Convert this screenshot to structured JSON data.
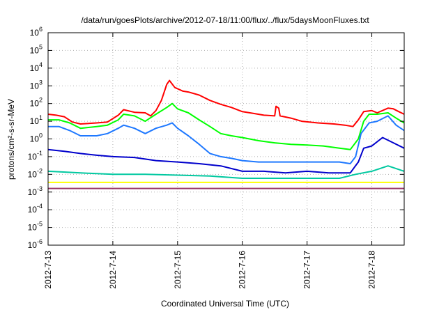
{
  "chart_data": {
    "type": "line",
    "title": "/data/run/goesPlots/archive/2012-07-18/11:00/flux/../flux/5daysMoonFluxes.txt",
    "xlabel": "Coordinated Universal Time (UTC)",
    "ylabel": "protons/cm²-s-sr-MeV",
    "yscale": "log",
    "xlim": [
      "2012-07-13T00:00",
      "2012-07-18T12:00"
    ],
    "ylim": [
      1e-06,
      1000000.0
    ],
    "grid": true,
    "xticks": [
      {
        "t": "2012-07-13T00:00",
        "label": "2012-7-13"
      },
      {
        "t": "2012-07-14T00:00",
        "label": "2012-7-14"
      },
      {
        "t": "2012-07-15T00:00",
        "label": "2012-7-15"
      },
      {
        "t": "2012-07-16T00:00",
        "label": "2012-7-16"
      },
      {
        "t": "2012-07-17T00:00",
        "label": "2012-7-17"
      },
      {
        "t": "2012-07-18T00:00",
        "label": "2012-7-18"
      }
    ],
    "yticks": [
      {
        "v": 1e-06,
        "base": "10",
        "exp": "-6"
      },
      {
        "v": 1e-05,
        "base": "10",
        "exp": "-5"
      },
      {
        "v": 0.0001,
        "base": "10",
        "exp": "-4"
      },
      {
        "v": 0.001,
        "base": "10",
        "exp": "-3"
      },
      {
        "v": 0.01,
        "base": "10",
        "exp": "-2"
      },
      {
        "v": 0.1,
        "base": "10",
        "exp": "-1"
      },
      {
        "v": 1.0,
        "base": "10",
        "exp": "0"
      },
      {
        "v": 10.0,
        "base": "10",
        "exp": "1"
      },
      {
        "v": 100.0,
        "base": "10",
        "exp": "2"
      },
      {
        "v": 1000.0,
        "base": "10",
        "exp": "3"
      },
      {
        "v": 10000.0,
        "base": "10",
        "exp": "4"
      },
      {
        "v": 100000.0,
        "base": "10",
        "exp": "5"
      },
      {
        "v": 1000000.0,
        "base": "10",
        "exp": "6"
      }
    ],
    "series": [
      {
        "color": "#ff0000",
        "points": [
          [
            "2012-07-13T00:00",
            25
          ],
          [
            "2012-07-13T03:00",
            22
          ],
          [
            "2012-07-13T06:00",
            18
          ],
          [
            "2012-07-13T09:00",
            9
          ],
          [
            "2012-07-13T12:00",
            7
          ],
          [
            "2012-07-13T18:00",
            8
          ],
          [
            "2012-07-13T22:00",
            9
          ],
          [
            "2012-07-14T02:00",
            22
          ],
          [
            "2012-07-14T04:00",
            45
          ],
          [
            "2012-07-14T08:00",
            32
          ],
          [
            "2012-07-14T12:00",
            30
          ],
          [
            "2012-07-14T14:00",
            20
          ],
          [
            "2012-07-14T16:00",
            40
          ],
          [
            "2012-07-14T18:00",
            150
          ],
          [
            "2012-07-14T20:00",
            1200
          ],
          [
            "2012-07-14T21:00",
            2000
          ],
          [
            "2012-07-14T23:00",
            800
          ],
          [
            "2012-07-15T02:00",
            500
          ],
          [
            "2012-07-15T04:00",
            450
          ],
          [
            "2012-07-15T08:00",
            300
          ],
          [
            "2012-07-15T12:00",
            150
          ],
          [
            "2012-07-15T16:00",
            90
          ],
          [
            "2012-07-15T20:00",
            60
          ],
          [
            "2012-07-16T00:00",
            35
          ],
          [
            "2012-07-16T04:00",
            28
          ],
          [
            "2012-07-16T08:00",
            22
          ],
          [
            "2012-07-16T12:00",
            20
          ],
          [
            "2012-07-16T12:30",
            70
          ],
          [
            "2012-07-16T13:30",
            55
          ],
          [
            "2012-07-16T14:00",
            20
          ],
          [
            "2012-07-16T18:00",
            15
          ],
          [
            "2012-07-16T22:00",
            10
          ],
          [
            "2012-07-17T04:00",
            8
          ],
          [
            "2012-07-17T10:00",
            7
          ],
          [
            "2012-07-17T14:00",
            6
          ],
          [
            "2012-07-17T17:00",
            5
          ],
          [
            "2012-07-17T19:00",
            12
          ],
          [
            "2012-07-17T21:00",
            35
          ],
          [
            "2012-07-18T00:00",
            40
          ],
          [
            "2012-07-18T02:00",
            30
          ],
          [
            "2012-07-18T06:00",
            55
          ],
          [
            "2012-07-18T08:00",
            50
          ],
          [
            "2012-07-18T10:00",
            35
          ],
          [
            "2012-07-18T12:00",
            25
          ]
        ]
      },
      {
        "color": "#00ff00",
        "points": [
          [
            "2012-07-13T00:00",
            12
          ],
          [
            "2012-07-13T04:00",
            12
          ],
          [
            "2012-07-13T08:00",
            8
          ],
          [
            "2012-07-13T12:00",
            4
          ],
          [
            "2012-07-13T18:00",
            5
          ],
          [
            "2012-07-13T22:00",
            6
          ],
          [
            "2012-07-14T02:00",
            12
          ],
          [
            "2012-07-14T04:00",
            25
          ],
          [
            "2012-07-14T08:00",
            20
          ],
          [
            "2012-07-14T12:00",
            10
          ],
          [
            "2012-07-14T16:00",
            25
          ],
          [
            "2012-07-14T20:00",
            60
          ],
          [
            "2012-07-14T22:00",
            100
          ],
          [
            "2012-07-15T00:00",
            50
          ],
          [
            "2012-07-15T04:00",
            30
          ],
          [
            "2012-07-15T08:00",
            12
          ],
          [
            "2012-07-15T12:00",
            5
          ],
          [
            "2012-07-15T16:00",
            2
          ],
          [
            "2012-07-15T20:00",
            1.5
          ],
          [
            "2012-07-16T00:00",
            1.2
          ],
          [
            "2012-07-16T06:00",
            0.8
          ],
          [
            "2012-07-16T12:00",
            0.6
          ],
          [
            "2012-07-16T18:00",
            0.5
          ],
          [
            "2012-07-17T00:00",
            0.45
          ],
          [
            "2012-07-17T06:00",
            0.4
          ],
          [
            "2012-07-17T12:00",
            0.3
          ],
          [
            "2012-07-17T16:00",
            0.25
          ],
          [
            "2012-07-17T19:00",
            1
          ],
          [
            "2012-07-17T21:00",
            10
          ],
          [
            "2012-07-17T23:00",
            25
          ],
          [
            "2012-07-18T02:00",
            25
          ],
          [
            "2012-07-18T06:00",
            30
          ],
          [
            "2012-07-18T09:00",
            15
          ],
          [
            "2012-07-18T12:00",
            8
          ]
        ]
      },
      {
        "color": "#1e78ff",
        "points": [
          [
            "2012-07-13T00:00",
            5
          ],
          [
            "2012-07-13T04:00",
            5
          ],
          [
            "2012-07-13T08:00",
            3
          ],
          [
            "2012-07-13T12:00",
            1.5
          ],
          [
            "2012-07-13T18:00",
            1.5
          ],
          [
            "2012-07-13T22:00",
            2
          ],
          [
            "2012-07-14T02:00",
            4
          ],
          [
            "2012-07-14T04:00",
            6
          ],
          [
            "2012-07-14T08:00",
            4
          ],
          [
            "2012-07-14T12:00",
            2
          ],
          [
            "2012-07-14T16:00",
            4
          ],
          [
            "2012-07-14T20:00",
            6
          ],
          [
            "2012-07-14T22:00",
            8
          ],
          [
            "2012-07-15T00:00",
            4
          ],
          [
            "2012-07-15T04:00",
            1.5
          ],
          [
            "2012-07-15T08:00",
            0.5
          ],
          [
            "2012-07-15T12:00",
            0.15
          ],
          [
            "2012-07-15T16:00",
            0.1
          ],
          [
            "2012-07-15T20:00",
            0.08
          ],
          [
            "2012-07-16T00:00",
            0.06
          ],
          [
            "2012-07-16T06:00",
            0.05
          ],
          [
            "2012-07-16T12:00",
            0.05
          ],
          [
            "2012-07-16T18:00",
            0.05
          ],
          [
            "2012-07-17T00:00",
            0.05
          ],
          [
            "2012-07-17T06:00",
            0.05
          ],
          [
            "2012-07-17T12:00",
            0.05
          ],
          [
            "2012-07-17T16:00",
            0.04
          ],
          [
            "2012-07-17T18:00",
            0.1
          ],
          [
            "2012-07-17T20:00",
            2
          ],
          [
            "2012-07-17T23:00",
            8
          ],
          [
            "2012-07-18T02:00",
            10
          ],
          [
            "2012-07-18T06:00",
            20
          ],
          [
            "2012-07-18T09:00",
            6
          ],
          [
            "2012-07-18T12:00",
            3
          ]
        ]
      },
      {
        "color": "#0000cc",
        "points": [
          [
            "2012-07-13T00:00",
            0.25
          ],
          [
            "2012-07-13T06:00",
            0.2
          ],
          [
            "2012-07-13T12:00",
            0.15
          ],
          [
            "2012-07-13T18:00",
            0.12
          ],
          [
            "2012-07-14T00:00",
            0.1
          ],
          [
            "2012-07-14T08:00",
            0.09
          ],
          [
            "2012-07-14T16:00",
            0.06
          ],
          [
            "2012-07-15T00:00",
            0.05
          ],
          [
            "2012-07-15T08:00",
            0.04
          ],
          [
            "2012-07-15T16:00",
            0.03
          ],
          [
            "2012-07-16T00:00",
            0.015
          ],
          [
            "2012-07-16T08:00",
            0.015
          ],
          [
            "2012-07-16T16:00",
            0.012
          ],
          [
            "2012-07-17T00:00",
            0.015
          ],
          [
            "2012-07-17T08:00",
            0.012
          ],
          [
            "2012-07-17T16:00",
            0.012
          ],
          [
            "2012-07-17T19:00",
            0.05
          ],
          [
            "2012-07-17T21:00",
            0.3
          ],
          [
            "2012-07-18T00:00",
            0.4
          ],
          [
            "2012-07-18T04:00",
            1.2
          ],
          [
            "2012-07-18T08:00",
            0.6
          ],
          [
            "2012-07-18T12:00",
            0.3
          ]
        ]
      },
      {
        "color": "#00c8a0",
        "points": [
          [
            "2012-07-13T00:00",
            0.015
          ],
          [
            "2012-07-13T12:00",
            0.012
          ],
          [
            "2012-07-14T00:00",
            0.01
          ],
          [
            "2012-07-14T12:00",
            0.01
          ],
          [
            "2012-07-15T00:00",
            0.009
          ],
          [
            "2012-07-15T12:00",
            0.008
          ],
          [
            "2012-07-16T00:00",
            0.006
          ],
          [
            "2012-07-16T12:00",
            0.006
          ],
          [
            "2012-07-17T00:00",
            0.006
          ],
          [
            "2012-07-17T12:00",
            0.006
          ],
          [
            "2012-07-17T18:00",
            0.01
          ],
          [
            "2012-07-18T00:00",
            0.015
          ],
          [
            "2012-07-18T06:00",
            0.03
          ],
          [
            "2012-07-18T12:00",
            0.015
          ]
        ]
      },
      {
        "color": "#ffff00",
        "points": [
          [
            "2012-07-13T00:00",
            0.0035
          ],
          [
            "2012-07-18T12:00",
            0.0035
          ]
        ]
      },
      {
        "color": "#993366",
        "points": [
          [
            "2012-07-13T00:00",
            0.0016
          ],
          [
            "2012-07-18T12:00",
            0.0016
          ]
        ]
      }
    ]
  }
}
